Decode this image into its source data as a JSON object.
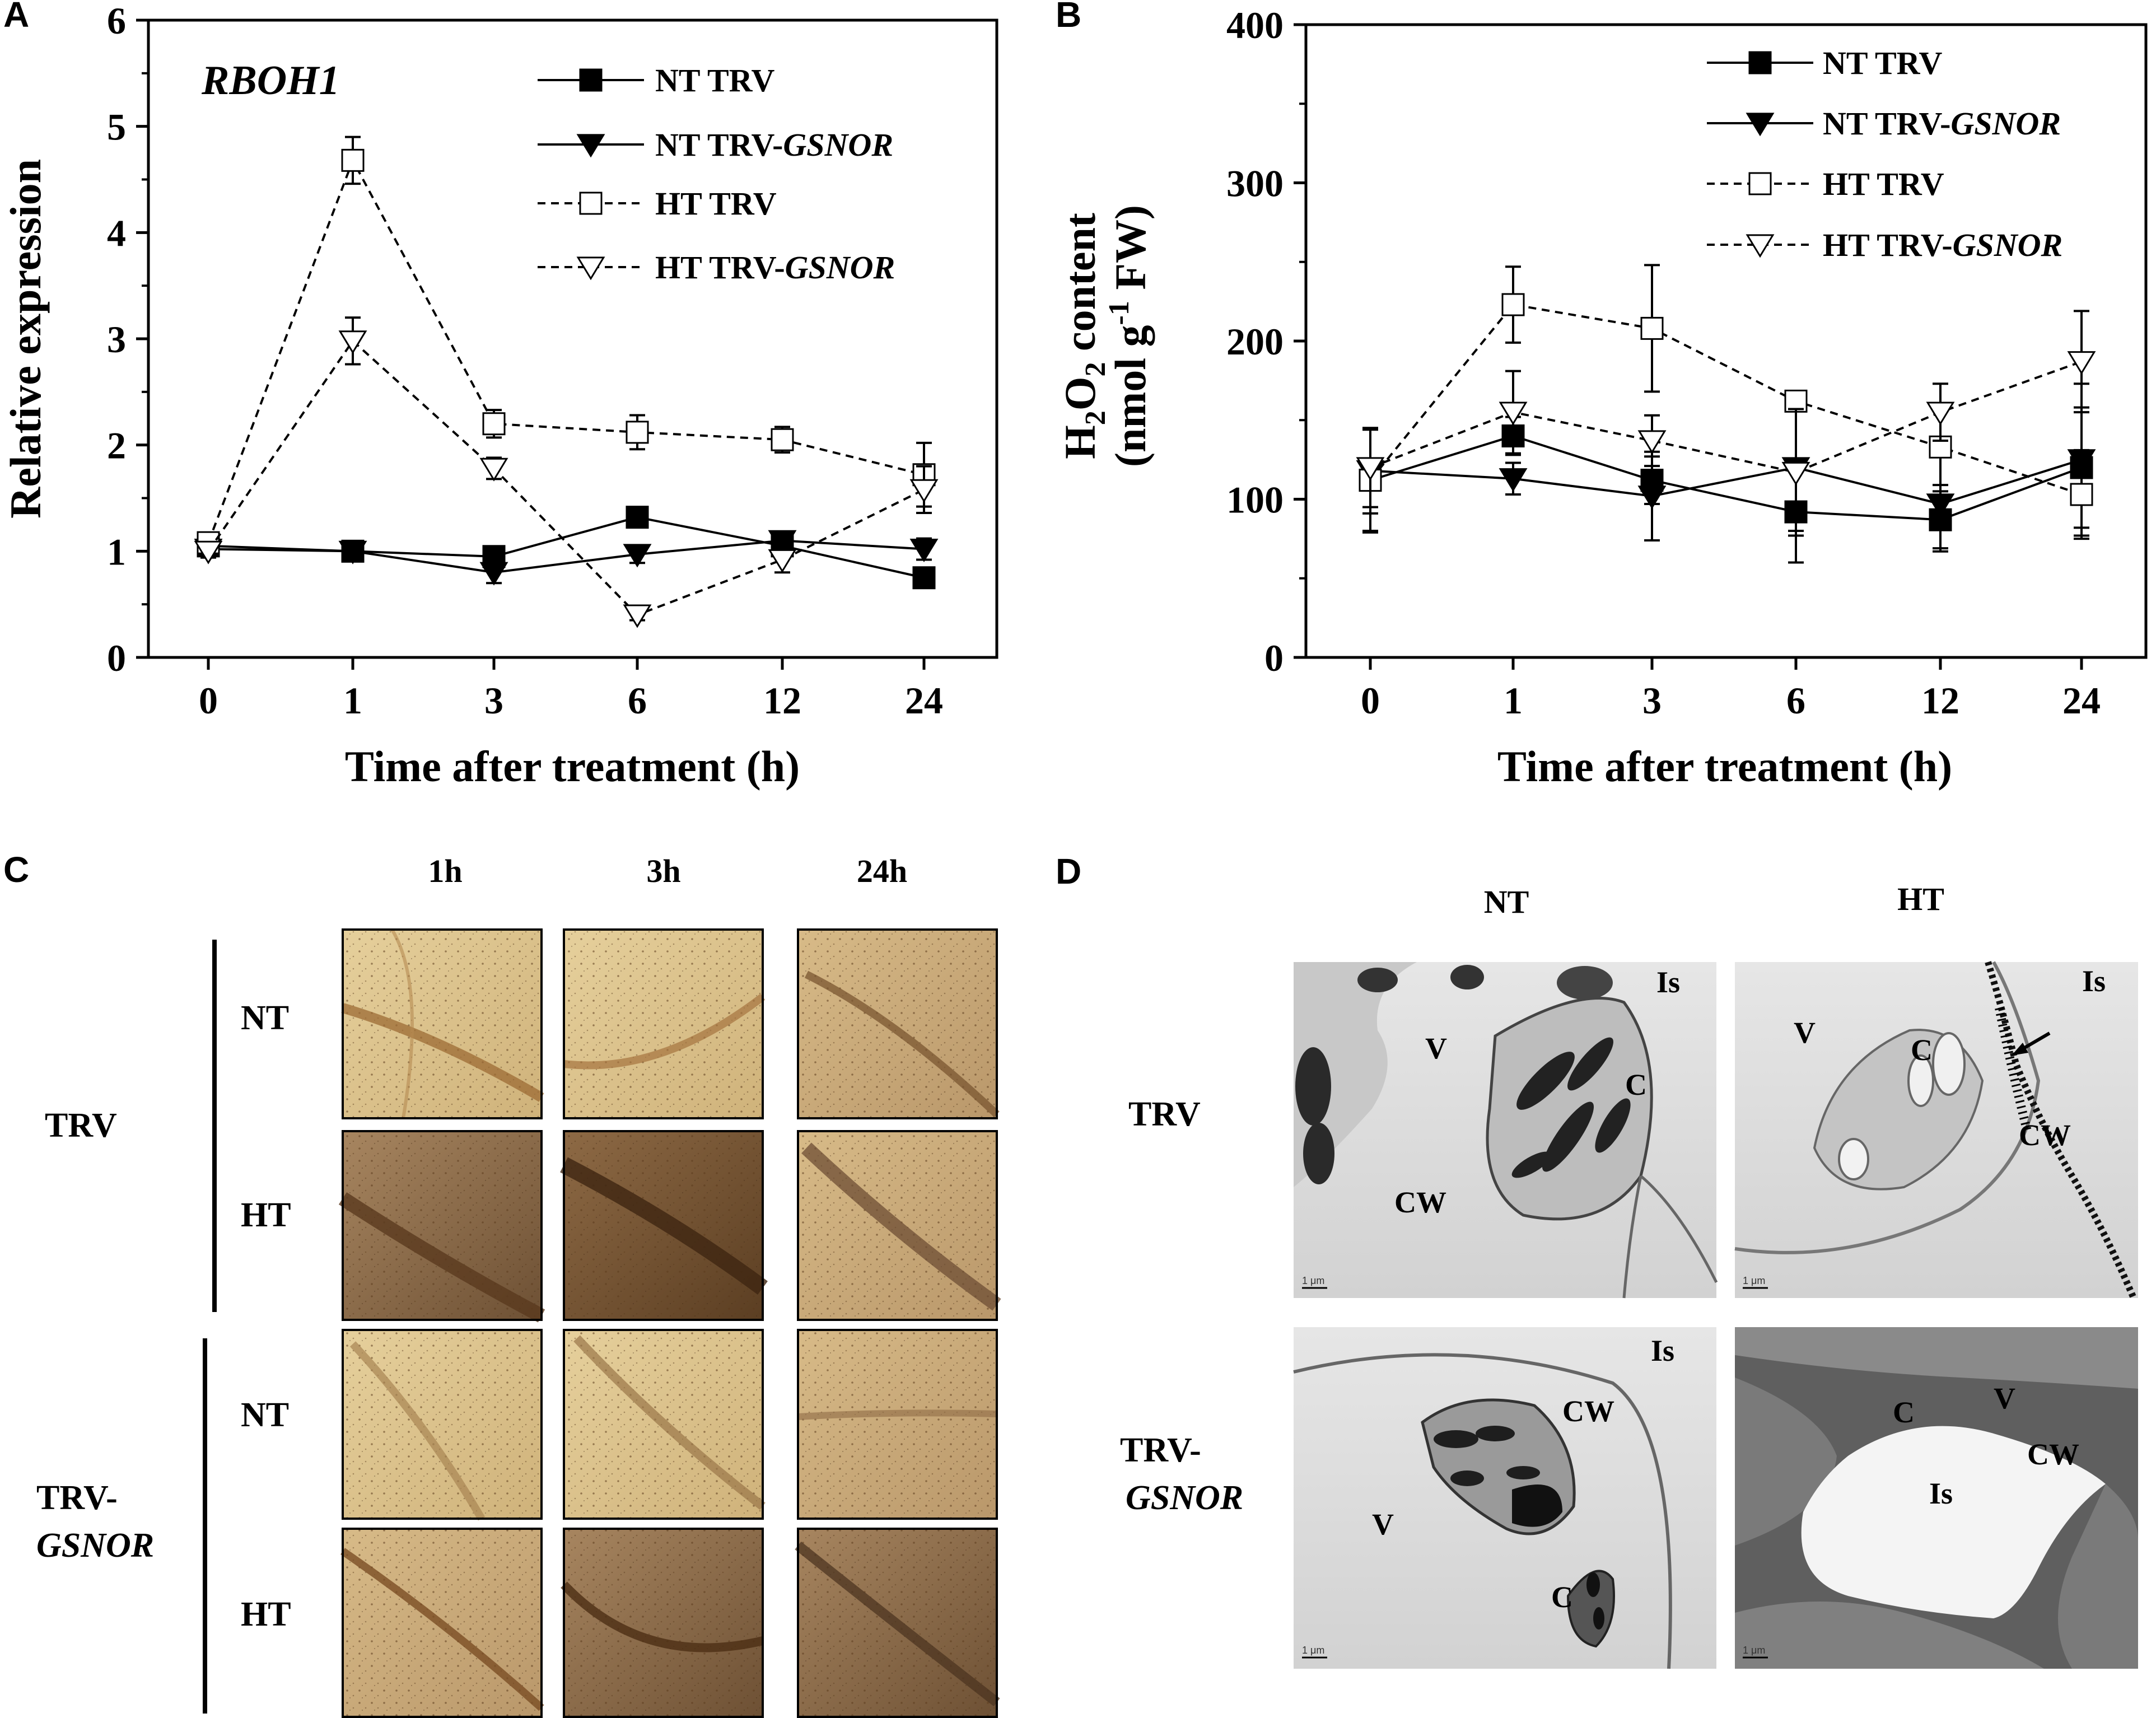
{
  "panels": {
    "a": "A",
    "b": "B",
    "c": "C",
    "d": "D"
  },
  "colors": {
    "ink": "#000000",
    "leaf_light": "#d9c08c",
    "leaf_dark": "#7a5630",
    "vein": "#8a5a2a",
    "tem_bg": "#dcdcdc",
    "tem_dark": "#1a1a1a"
  },
  "chart_data": [
    {
      "id": "A",
      "type": "line",
      "title": "RBOH1",
      "xlabel": "Time after treatment (h)",
      "ylabel": "Relative expression",
      "categories": [
        "0",
        "1",
        "3",
        "6",
        "12",
        "24"
      ],
      "ylim": [
        0,
        6
      ],
      "yticks": [
        "0",
        "1",
        "2",
        "3",
        "4",
        "5",
        "6"
      ],
      "legend_position": "top-right",
      "series": [
        {
          "name": "NT TRV",
          "name_main": "NT TRV",
          "name_ital": "",
          "marker": "square-filled",
          "dash": "solid",
          "values": [
            1.05,
            1.0,
            0.95,
            1.32,
            1.05,
            0.75
          ],
          "errors": [
            0.08,
            0.05,
            0.06,
            0.05,
            0.06,
            0.06
          ]
        },
        {
          "name": "NT TRV-GSNOR",
          "name_main": "NT TRV-",
          "name_ital": "GSNOR",
          "marker": "triangle-down-filled",
          "dash": "solid",
          "values": [
            1.02,
            1.0,
            0.8,
            0.97,
            1.1,
            1.02
          ],
          "errors": [
            0.06,
            0.05,
            0.1,
            0.08,
            0.08,
            0.1
          ]
        },
        {
          "name": "HT TRV",
          "name_main": "HT TRV",
          "name_ital": "",
          "marker": "square-open",
          "dash": "dashed",
          "values": [
            1.08,
            4.68,
            2.2,
            2.12,
            2.05,
            1.72
          ],
          "errors": [
            0.06,
            0.22,
            0.13,
            0.16,
            0.12,
            0.3
          ]
        },
        {
          "name": "HT TRV-GSNOR",
          "name_main": "HT TRV-",
          "name_ital": "GSNOR",
          "marker": "triangle-down-open",
          "dash": "dashed",
          "values": [
            1.0,
            2.98,
            1.78,
            0.4,
            0.92,
            1.58
          ],
          "errors": [
            0.06,
            0.22,
            0.1,
            0.05,
            0.12,
            0.22
          ]
        }
      ]
    },
    {
      "id": "B",
      "type": "line",
      "title": "",
      "xlabel": "Time after treatment (h)",
      "ylabel_line1": "H2O2 content",
      "ylabel_line2": "(nmol g-1 FW)",
      "ylabel_parts": {
        "h": "H",
        "sub2a": "2",
        "o": "O",
        "sub2b": "2",
        "content": " content",
        "open": "(nmol g",
        "sup": "-1",
        "close": " FW)"
      },
      "categories": [
        "0",
        "1",
        "3",
        "6",
        "12",
        "24"
      ],
      "ylim": [
        0,
        400
      ],
      "yticks": [
        "0",
        "100",
        "200",
        "300",
        "400"
      ],
      "legend_position": "top-right",
      "series": [
        {
          "name": "NT TRV",
          "name_main": "NT TRV",
          "name_ital": "",
          "marker": "square-filled",
          "dash": "solid",
          "values": [
            112,
            140,
            112,
            92,
            87,
            120
          ],
          "errors": [
            33,
            12,
            15,
            32,
            18,
            38
          ]
        },
        {
          "name": "NT TRV-GSNOR",
          "name_main": "NT TRV-",
          "name_ital": "GSNOR",
          "marker": "triangle-down-filled",
          "dash": "solid",
          "values": [
            118,
            113,
            102,
            120,
            97,
            125
          ],
          "errors": [
            27,
            10,
            28,
            40,
            30,
            48
          ]
        },
        {
          "name": "HT TRV",
          "name_main": "HT TRV",
          "name_ital": "",
          "marker": "square-open",
          "dash": "dashed",
          "values": [
            112,
            223,
            208,
            162,
            133,
            103
          ],
          "errors": [
            32,
            24,
            40,
            6,
            24,
            28
          ]
        },
        {
          "name": "HT TRV-GSNOR",
          "name_main": "HT TRV-",
          "name_ital": "GSNOR",
          "marker": "triangle-down-open",
          "dash": "dashed",
          "values": [
            120,
            155,
            137,
            117,
            155,
            187
          ],
          "errors": [
            25,
            26,
            16,
            40,
            18,
            32
          ]
        }
      ]
    }
  ],
  "panel_c": {
    "columns": [
      "1h",
      "3h",
      "24h"
    ],
    "groups": [
      {
        "label_line1": "TRV",
        "label_line2": "",
        "rows": [
          "NT",
          "HT"
        ]
      },
      {
        "label_line1": "TRV-",
        "label_line2": "GSNOR",
        "rows": [
          "NT",
          "HT"
        ]
      }
    ]
  },
  "panel_d": {
    "columns": [
      "NT",
      "HT"
    ],
    "rows": [
      {
        "label_line1": "TRV",
        "label_line2": ""
      },
      {
        "label_line1": "TRV-",
        "label_line2": "GSNOR"
      }
    ],
    "scale_bar": "1 μm",
    "labels": {
      "trv_nt": [
        "Is",
        "V",
        "C",
        "CW"
      ],
      "trv_ht": [
        "Is",
        "V",
        "C",
        "CW"
      ],
      "gsnor_nt": [
        "Is",
        "CW",
        "V",
        "C"
      ],
      "gsnor_ht": [
        "C",
        "V",
        "CW",
        "Is"
      ]
    }
  }
}
